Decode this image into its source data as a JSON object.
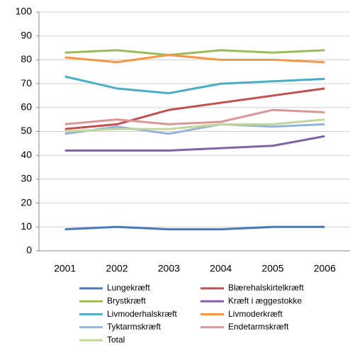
{
  "chart_data": {
    "type": "line",
    "categories": [
      "2001",
      "2002",
      "2003",
      "2004",
      "2005",
      "2006"
    ],
    "series": [
      {
        "name": "Lungekræft",
        "color": "#4a7ab5",
        "values": [
          9,
          10,
          9,
          9,
          10,
          10
        ]
      },
      {
        "name": "Blærehalskirtelkræft",
        "color": "#c0504d",
        "values": [
          51,
          53,
          59,
          62,
          65,
          68
        ]
      },
      {
        "name": "Brystkræft",
        "color": "#9bbb59",
        "values": [
          83,
          84,
          82,
          84,
          83,
          84
        ]
      },
      {
        "name": "Kræft i æggestokke",
        "color": "#8064a2",
        "values": [
          42,
          42,
          42,
          43,
          44,
          48
        ]
      },
      {
        "name": "Livmoderhalskræft",
        "color": "#4bacc6",
        "values": [
          73,
          68,
          66,
          70,
          71,
          72
        ]
      },
      {
        "name": "Livmoderkræft",
        "color": "#f79646",
        "values": [
          81,
          79,
          82,
          80,
          80,
          79
        ]
      },
      {
        "name": "Tyktarmskræft",
        "color": "#95b3d7",
        "values": [
          49,
          52,
          49,
          53,
          52,
          53
        ]
      },
      {
        "name": "Endetarmskræft",
        "color": "#d99694",
        "values": [
          53,
          55,
          53,
          54,
          59,
          58
        ]
      },
      {
        "name": "Total",
        "color": "#c3d69b",
        "values": [
          50,
          51,
          51,
          53,
          53,
          55
        ]
      }
    ],
    "ylim": [
      0,
      100
    ],
    "yticks": [
      0,
      10,
      20,
      30,
      40,
      50,
      60,
      70,
      80,
      90,
      100
    ],
    "grid": true
  }
}
